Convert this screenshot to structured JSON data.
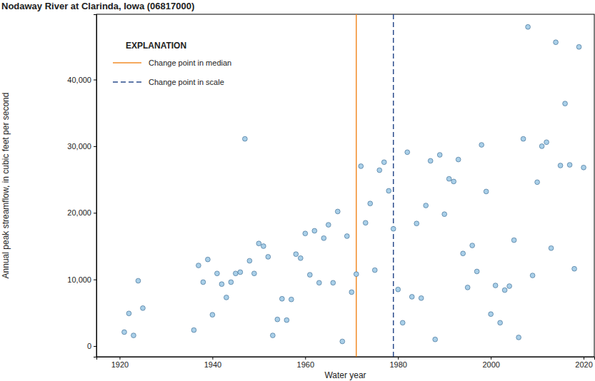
{
  "chart_data": {
    "type": "scatter",
    "title": "Nodaway River at Clarinda, Iowa (06817000)",
    "x_label": "Water year",
    "y_label": "Annual peak streamflow, in cubic feet per second",
    "x": [
      1921,
      1922,
      1923,
      1924,
      1925,
      1936,
      1937,
      1938,
      1939,
      1940,
      1941,
      1942,
      1943,
      1944,
      1945,
      1946,
      1947,
      1948,
      1949,
      1950,
      1951,
      1952,
      1953,
      1954,
      1955,
      1956,
      1957,
      1958,
      1959,
      1960,
      1961,
      1962,
      1963,
      1964,
      1965,
      1966,
      1967,
      1968,
      1969,
      1970,
      1971,
      1972,
      1973,
      1974,
      1975,
      1976,
      1977,
      1978,
      1979,
      1980,
      1981,
      1982,
      1983,
      1984,
      1985,
      1986,
      1987,
      1988,
      1989,
      1990,
      1991,
      1992,
      1993,
      1994,
      1995,
      1996,
      1997,
      1998,
      1999,
      2000,
      2001,
      2002,
      2003,
      2004,
      2005,
      2006,
      2007,
      2008,
      2009,
      2010,
      2011,
      2012,
      2013,
      2014,
      2015,
      2016,
      2017,
      2018,
      2019,
      2020
    ],
    "y": [
      2100,
      4900,
      1600,
      9800,
      5700,
      2400,
      12100,
      9600,
      13000,
      4700,
      10900,
      9300,
      7300,
      9600,
      10900,
      11100,
      31100,
      12800,
      10900,
      15400,
      15000,
      13400,
      1600,
      4000,
      7100,
      3900,
      7000,
      13800,
      13200,
      16900,
      10700,
      17300,
      9500,
      16200,
      18200,
      9500,
      20200,
      700,
      16500,
      8100,
      10800,
      27000,
      18500,
      21400,
      11400,
      26400,
      27600,
      23300,
      17600,
      8500,
      3500,
      29100,
      7400,
      18400,
      7200,
      21100,
      27800,
      1000,
      28700,
      19800,
      25100,
      24700,
      28000,
      13900,
      8800,
      15100,
      11200,
      30200,
      23200,
      4800,
      9100,
      3500,
      8400,
      9000,
      15900,
      1300,
      31100,
      47900,
      10600,
      24600,
      30000,
      30600,
      14700,
      45600,
      27100,
      36400,
      27200,
      11600,
      44900,
      26800
    ],
    "color": "#a9cfe8",
    "marker": "circle",
    "xlim": [
      1915,
      2022.3
    ],
    "ylim": [
      -1600,
      49800
    ],
    "xticks": [
      1920,
      1940,
      1960,
      1980,
      2000,
      2020
    ],
    "yticks": [
      0,
      {
        "value": 10000,
        "label": "10,000"
      },
      {
        "value": 20000,
        "label": "20,000"
      },
      {
        "value": 30000,
        "label": "30,000"
      },
      {
        "value": 40000,
        "label": "40,000"
      }
    ],
    "grid": false,
    "legend": "upper left",
    "legend_title": "EXPLANATION",
    "vlines": [
      {
        "name": "Change point in median",
        "x": 1971,
        "color": "#f28c28",
        "line_style": "solid"
      },
      {
        "name": "Change point in scale",
        "x": 1979,
        "color": "#2b4c8c",
        "line_style": "dashed"
      }
    ]
  }
}
